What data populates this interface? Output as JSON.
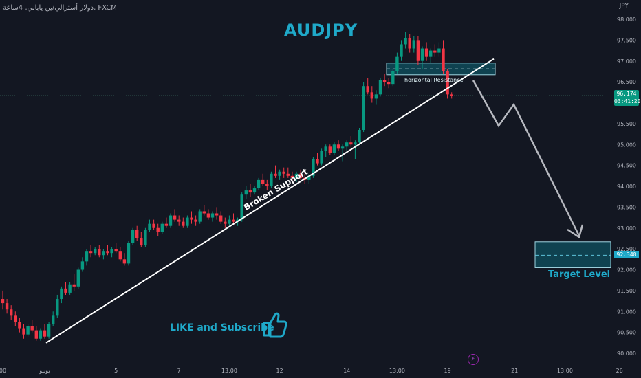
{
  "header": {
    "symbol_line": "دولار أسترالي/ين ياباني, 4ساعة, FXCM",
    "currency": "JPY"
  },
  "title": "AUDJPY",
  "annotations": {
    "horizontal_resistance": "horizontal Resistance",
    "broken_support": "Broken Support",
    "target_level": "Target Level",
    "like_subscribe": "LIKE and Subscribe"
  },
  "price_badge": {
    "price": "96.174",
    "countdown": "03:41:20"
  },
  "target_badge": "92.348",
  "chart_data": {
    "type": "candlestick",
    "symbol": "AUDJPY",
    "timeframe": "4H",
    "ylim": [
      89.9,
      98.2
    ],
    "y_ticks": [
      "98.000",
      "97.500",
      "97.000",
      "96.500",
      "96.000",
      "95.500",
      "95.000",
      "94.500",
      "94.000",
      "93.500",
      "93.000",
      "92.500",
      "92.000",
      "91.500",
      "91.000",
      "90.500",
      "90.000"
    ],
    "x_ticks": [
      {
        "label": "00",
        "index": 0
      },
      {
        "label": "يونيو",
        "index": 10
      },
      {
        "label": "5",
        "index": 27
      },
      {
        "label": "7",
        "index": 42
      },
      {
        "label": "13:00",
        "index": 54
      },
      {
        "label": "12",
        "index": 66
      },
      {
        "label": "14",
        "index": 82
      },
      {
        "label": "13:00",
        "index": 94
      },
      {
        "label": "19",
        "index": 106
      },
      {
        "label": "21",
        "index": 122
      },
      {
        "label": "13:00",
        "index": 134
      },
      {
        "label": "26",
        "index": 147
      }
    ],
    "candles": [
      [
        91.3,
        91.5,
        91.05,
        91.2
      ],
      [
        91.2,
        91.3,
        90.95,
        91.05
      ],
      [
        91.05,
        91.15,
        90.8,
        90.9
      ],
      [
        90.9,
        91.0,
        90.65,
        90.75
      ],
      [
        90.75,
        90.85,
        90.5,
        90.6
      ],
      [
        90.6,
        90.7,
        90.35,
        90.45
      ],
      [
        90.45,
        90.7,
        90.4,
        90.65
      ],
      [
        90.65,
        90.8,
        90.5,
        90.55
      ],
      [
        90.55,
        90.65,
        90.3,
        90.35
      ],
      [
        90.35,
        90.6,
        90.3,
        90.55
      ],
      [
        90.55,
        90.7,
        90.35,
        90.4
      ],
      [
        90.4,
        90.75,
        90.35,
        90.7
      ],
      [
        90.7,
        91.0,
        90.65,
        90.9
      ],
      [
        90.9,
        91.4,
        90.85,
        91.3
      ],
      [
        91.3,
        91.6,
        91.2,
        91.55
      ],
      [
        91.55,
        91.7,
        91.4,
        91.45
      ],
      [
        91.45,
        91.7,
        91.4,
        91.65
      ],
      [
        91.65,
        91.9,
        91.5,
        91.6
      ],
      [
        91.6,
        92.05,
        91.55,
        92.0
      ],
      [
        92.0,
        92.3,
        91.95,
        92.2
      ],
      [
        92.2,
        92.5,
        92.1,
        92.45
      ],
      [
        92.45,
        92.6,
        92.3,
        92.4
      ],
      [
        92.4,
        92.55,
        92.35,
        92.5
      ],
      [
        92.5,
        92.6,
        92.3,
        92.35
      ],
      [
        92.35,
        92.5,
        92.25,
        92.45
      ],
      [
        92.45,
        92.6,
        92.35,
        92.4
      ],
      [
        92.4,
        92.55,
        92.3,
        92.5
      ],
      [
        92.5,
        92.65,
        92.4,
        92.45
      ],
      [
        92.45,
        92.55,
        92.2,
        92.25
      ],
      [
        92.25,
        92.4,
        92.1,
        92.15
      ],
      [
        92.15,
        92.7,
        92.1,
        92.65
      ],
      [
        92.65,
        93.0,
        92.6,
        92.95
      ],
      [
        92.95,
        93.05,
        92.7,
        92.75
      ],
      [
        92.75,
        92.9,
        92.55,
        92.6
      ],
      [
        92.6,
        93.0,
        92.55,
        92.95
      ],
      [
        92.95,
        93.2,
        92.9,
        93.1
      ],
      [
        93.1,
        93.2,
        92.95,
        93.0
      ],
      [
        93.0,
        93.1,
        92.8,
        92.9
      ],
      [
        92.9,
        93.15,
        92.85,
        93.1
      ],
      [
        93.1,
        93.25,
        93.0,
        93.05
      ],
      [
        93.05,
        93.35,
        93.0,
        93.3
      ],
      [
        93.3,
        93.45,
        93.15,
        93.2
      ],
      [
        93.2,
        93.3,
        93.05,
        93.15
      ],
      [
        93.15,
        93.25,
        93.0,
        93.05
      ],
      [
        93.05,
        93.3,
        93.0,
        93.25
      ],
      [
        93.25,
        93.4,
        93.1,
        93.2
      ],
      [
        93.2,
        93.3,
        93.05,
        93.15
      ],
      [
        93.15,
        93.45,
        93.1,
        93.4
      ],
      [
        93.4,
        93.55,
        93.3,
        93.35
      ],
      [
        93.35,
        93.45,
        93.2,
        93.25
      ],
      [
        93.25,
        93.4,
        93.15,
        93.35
      ],
      [
        93.35,
        93.5,
        93.2,
        93.3
      ],
      [
        93.3,
        93.4,
        93.1,
        93.15
      ],
      [
        93.15,
        93.25,
        93.0,
        93.1
      ],
      [
        93.1,
        93.3,
        93.05,
        93.2
      ],
      [
        93.2,
        93.35,
        93.1,
        93.15
      ],
      [
        93.15,
        93.25,
        93.05,
        93.2
      ],
      [
        93.2,
        93.85,
        93.15,
        93.8
      ],
      [
        93.8,
        94.0,
        93.7,
        93.9
      ],
      [
        93.9,
        94.05,
        93.75,
        93.85
      ],
      [
        93.85,
        94.0,
        93.8,
        93.95
      ],
      [
        93.95,
        94.2,
        93.9,
        94.15
      ],
      [
        94.15,
        94.3,
        94.0,
        94.05
      ],
      [
        94.05,
        94.15,
        93.9,
        94.0
      ],
      [
        94.0,
        94.35,
        93.95,
        94.3
      ],
      [
        94.3,
        94.5,
        94.2,
        94.25
      ],
      [
        94.25,
        94.4,
        94.15,
        94.35
      ],
      [
        94.35,
        94.45,
        94.2,
        94.3
      ],
      [
        94.3,
        94.45,
        94.2,
        94.25
      ],
      [
        94.25,
        94.35,
        94.1,
        94.2
      ],
      [
        94.2,
        94.35,
        94.1,
        94.3
      ],
      [
        94.3,
        94.4,
        94.15,
        94.2
      ],
      [
        94.2,
        94.3,
        94.05,
        94.15
      ],
      [
        94.15,
        94.3,
        94.05,
        94.25
      ],
      [
        94.25,
        94.7,
        94.2,
        94.65
      ],
      [
        94.65,
        94.8,
        94.5,
        94.55
      ],
      [
        94.55,
        94.9,
        94.5,
        94.85
      ],
      [
        94.85,
        95.0,
        94.7,
        94.95
      ],
      [
        94.95,
        95.0,
        94.75,
        94.8
      ],
      [
        94.8,
        95.05,
        94.75,
        95.0
      ],
      [
        95.0,
        95.1,
        94.85,
        94.9
      ],
      [
        94.9,
        95.0,
        94.6,
        94.95
      ],
      [
        94.95,
        95.1,
        94.85,
        95.05
      ],
      [
        95.05,
        95.2,
        94.95,
        95.0
      ],
      [
        95.0,
        95.1,
        94.65,
        95.05
      ],
      [
        95.05,
        95.4,
        95.0,
        95.35
      ],
      [
        95.35,
        96.5,
        95.3,
        96.4
      ],
      [
        96.4,
        96.6,
        96.2,
        96.25
      ],
      [
        96.25,
        96.4,
        96.0,
        96.1
      ],
      [
        96.1,
        96.3,
        95.95,
        96.2
      ],
      [
        96.2,
        96.6,
        96.15,
        96.55
      ],
      [
        96.55,
        96.7,
        96.4,
        96.5
      ],
      [
        96.5,
        96.6,
        96.35,
        96.45
      ],
      [
        96.45,
        96.8,
        96.4,
        96.75
      ],
      [
        96.75,
        97.2,
        96.7,
        97.1
      ],
      [
        97.1,
        97.5,
        97.0,
        97.4
      ],
      [
        97.4,
        97.7,
        97.3,
        97.55
      ],
      [
        97.55,
        97.65,
        97.2,
        97.3
      ],
      [
        97.3,
        97.6,
        97.2,
        97.5
      ],
      [
        97.5,
        97.6,
        96.9,
        97.0
      ],
      [
        97.0,
        97.35,
        96.8,
        97.3
      ],
      [
        97.3,
        97.45,
        97.0,
        97.1
      ],
      [
        97.1,
        97.3,
        96.95,
        97.25
      ],
      [
        97.25,
        97.4,
        97.1,
        97.2
      ],
      [
        97.2,
        97.45,
        97.1,
        97.3
      ],
      [
        97.3,
        97.5,
        96.7,
        96.75
      ],
      [
        96.75,
        96.8,
        96.1,
        96.2
      ],
      [
        96.2,
        96.25,
        96.1,
        96.17
      ]
    ],
    "resistance_zone": [
      96.67,
      96.95
    ],
    "target_zone": [
      92.05,
      92.67
    ],
    "target_price": 92.348,
    "current_price": 96.174,
    "support_line": {
      "from": [
        5,
        90.25
      ],
      "to": [
        111,
        97.05
      ]
    },
    "projection_path": [
      [
        108,
        96.45
      ],
      [
        114,
        95.55
      ],
      [
        118,
        96.0
      ],
      [
        130,
        92.75
      ]
    ]
  }
}
